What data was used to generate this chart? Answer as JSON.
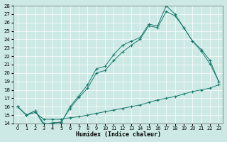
{
  "xlabel": "Humidex (Indice chaleur)",
  "bg_color": "#cce9e5",
  "grid_color": "#ffffff",
  "line_color": "#1a7a6e",
  "xlim": [
    -0.5,
    23.5
  ],
  "ylim": [
    14,
    28
  ],
  "xticks": [
    0,
    1,
    2,
    3,
    4,
    5,
    6,
    7,
    8,
    9,
    10,
    11,
    12,
    13,
    14,
    15,
    16,
    17,
    18,
    19,
    20,
    21,
    22,
    23
  ],
  "yticks": [
    14,
    15,
    16,
    17,
    18,
    19,
    20,
    21,
    22,
    23,
    24,
    25,
    26,
    27,
    28
  ],
  "line1_x": [
    0,
    1,
    2,
    3,
    4,
    5,
    6,
    7,
    8,
    9,
    10,
    11,
    12,
    13,
    14,
    15,
    16,
    17,
    18,
    19,
    20,
    21,
    22,
    23
  ],
  "line1_y": [
    16.0,
    15.0,
    15.5,
    13.8,
    14.1,
    14.1,
    16.0,
    17.3,
    18.6,
    20.5,
    20.8,
    22.2,
    23.3,
    23.8,
    24.2,
    25.8,
    25.6,
    28.0,
    27.0,
    25.4,
    23.8,
    22.6,
    21.1,
    19.0
  ],
  "line2_x": [
    0,
    1,
    2,
    3,
    4,
    5,
    6,
    7,
    8,
    9,
    10,
    11,
    12,
    13,
    14,
    15,
    16,
    17,
    18,
    19,
    20,
    21,
    22,
    23
  ],
  "line2_y": [
    16.0,
    15.0,
    15.5,
    14.0,
    14.0,
    14.2,
    15.8,
    17.1,
    18.2,
    20.0,
    20.3,
    21.5,
    22.5,
    23.3,
    24.0,
    25.6,
    25.4,
    27.3,
    26.8,
    25.4,
    23.8,
    22.8,
    21.5,
    19.0
  ],
  "line3_x": [
    0,
    1,
    2,
    3,
    4,
    5,
    6,
    7,
    8,
    9,
    10,
    11,
    12,
    13,
    14,
    15,
    16,
    17,
    18,
    19,
    20,
    21,
    22,
    23
  ],
  "line3_y": [
    16.0,
    15.0,
    15.3,
    14.5,
    14.5,
    14.5,
    14.7,
    14.8,
    15.0,
    15.2,
    15.4,
    15.6,
    15.8,
    16.0,
    16.2,
    16.5,
    16.8,
    17.0,
    17.2,
    17.5,
    17.8,
    18.0,
    18.2,
    18.6
  ]
}
